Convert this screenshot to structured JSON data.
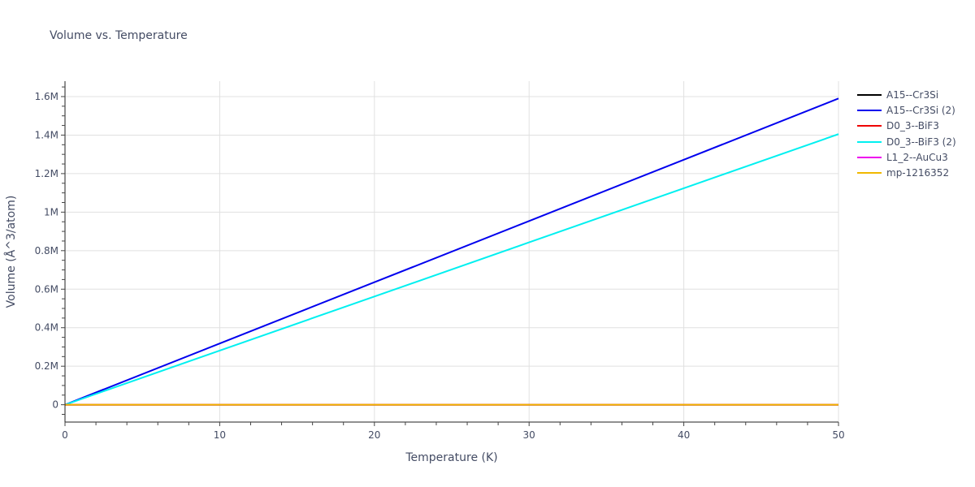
{
  "title": "Volume vs. Temperature",
  "xaxis": {
    "label": "Temperature (K)",
    "ticks": [
      "0",
      "10",
      "20",
      "30",
      "40",
      "50"
    ],
    "tick_values": [
      0,
      10,
      20,
      30,
      40,
      50
    ],
    "range": [
      0,
      50
    ]
  },
  "yaxis": {
    "label": "Volume (Å^3/atom)",
    "ticks": [
      "0",
      "0.2M",
      "0.4M",
      "0.6M",
      "0.8M",
      "1M",
      "1.2M",
      "1.4M",
      "1.6M"
    ],
    "tick_values": [
      0,
      200000,
      400000,
      600000,
      800000,
      1000000,
      1200000,
      1400000,
      1600000
    ],
    "range": [
      -90000,
      1680000
    ]
  },
  "legend": [
    {
      "name": "A15--Cr3Si",
      "color": "#000000"
    },
    {
      "name": "A15--Cr3Si (2)",
      "color": "#0000ee"
    },
    {
      "name": "D0_3--BiF3",
      "color": "#ee0000"
    },
    {
      "name": "D0_3--BiF3 (2)",
      "color": "#00f0f0"
    },
    {
      "name": "L1_2--AuCu3",
      "color": "#ee00ee"
    },
    {
      "name": "mp-1216352",
      "color": "#f0b800"
    }
  ],
  "chart_data": {
    "type": "line",
    "title": "Volume vs. Temperature",
    "xlabel": "Temperature (K)",
    "ylabel": "Volume (Å^3/atom)",
    "xlim": [
      0,
      50
    ],
    "ylim": [
      -90000,
      1680000
    ],
    "grid": true,
    "legend_position": "right",
    "series": [
      {
        "name": "A15--Cr3Si",
        "color": "#000000",
        "x": [
          0,
          50
        ],
        "y": [
          12,
          12
        ]
      },
      {
        "name": "A15--Cr3Si (2)",
        "color": "#0000ee",
        "x": [
          0,
          10,
          20,
          30,
          40,
          50
        ],
        "y": [
          0,
          318000,
          636000,
          954000,
          1272000,
          1590000
        ]
      },
      {
        "name": "D0_3--BiF3",
        "color": "#ee0000",
        "x": [
          0,
          50
        ],
        "y": [
          14,
          14
        ]
      },
      {
        "name": "D0_3--BiF3 (2)",
        "color": "#00f0f0",
        "x": [
          0,
          10,
          20,
          30,
          40,
          50
        ],
        "y": [
          0,
          281000,
          562000,
          843000,
          1124000,
          1405000
        ]
      },
      {
        "name": "L1_2--AuCu3",
        "color": "#ee00ee",
        "x": [
          0,
          50
        ],
        "y": [
          13,
          13
        ]
      },
      {
        "name": "mp-1216352",
        "color": "#f0b800",
        "x": [
          0,
          50
        ],
        "y": [
          13,
          13
        ]
      }
    ]
  }
}
